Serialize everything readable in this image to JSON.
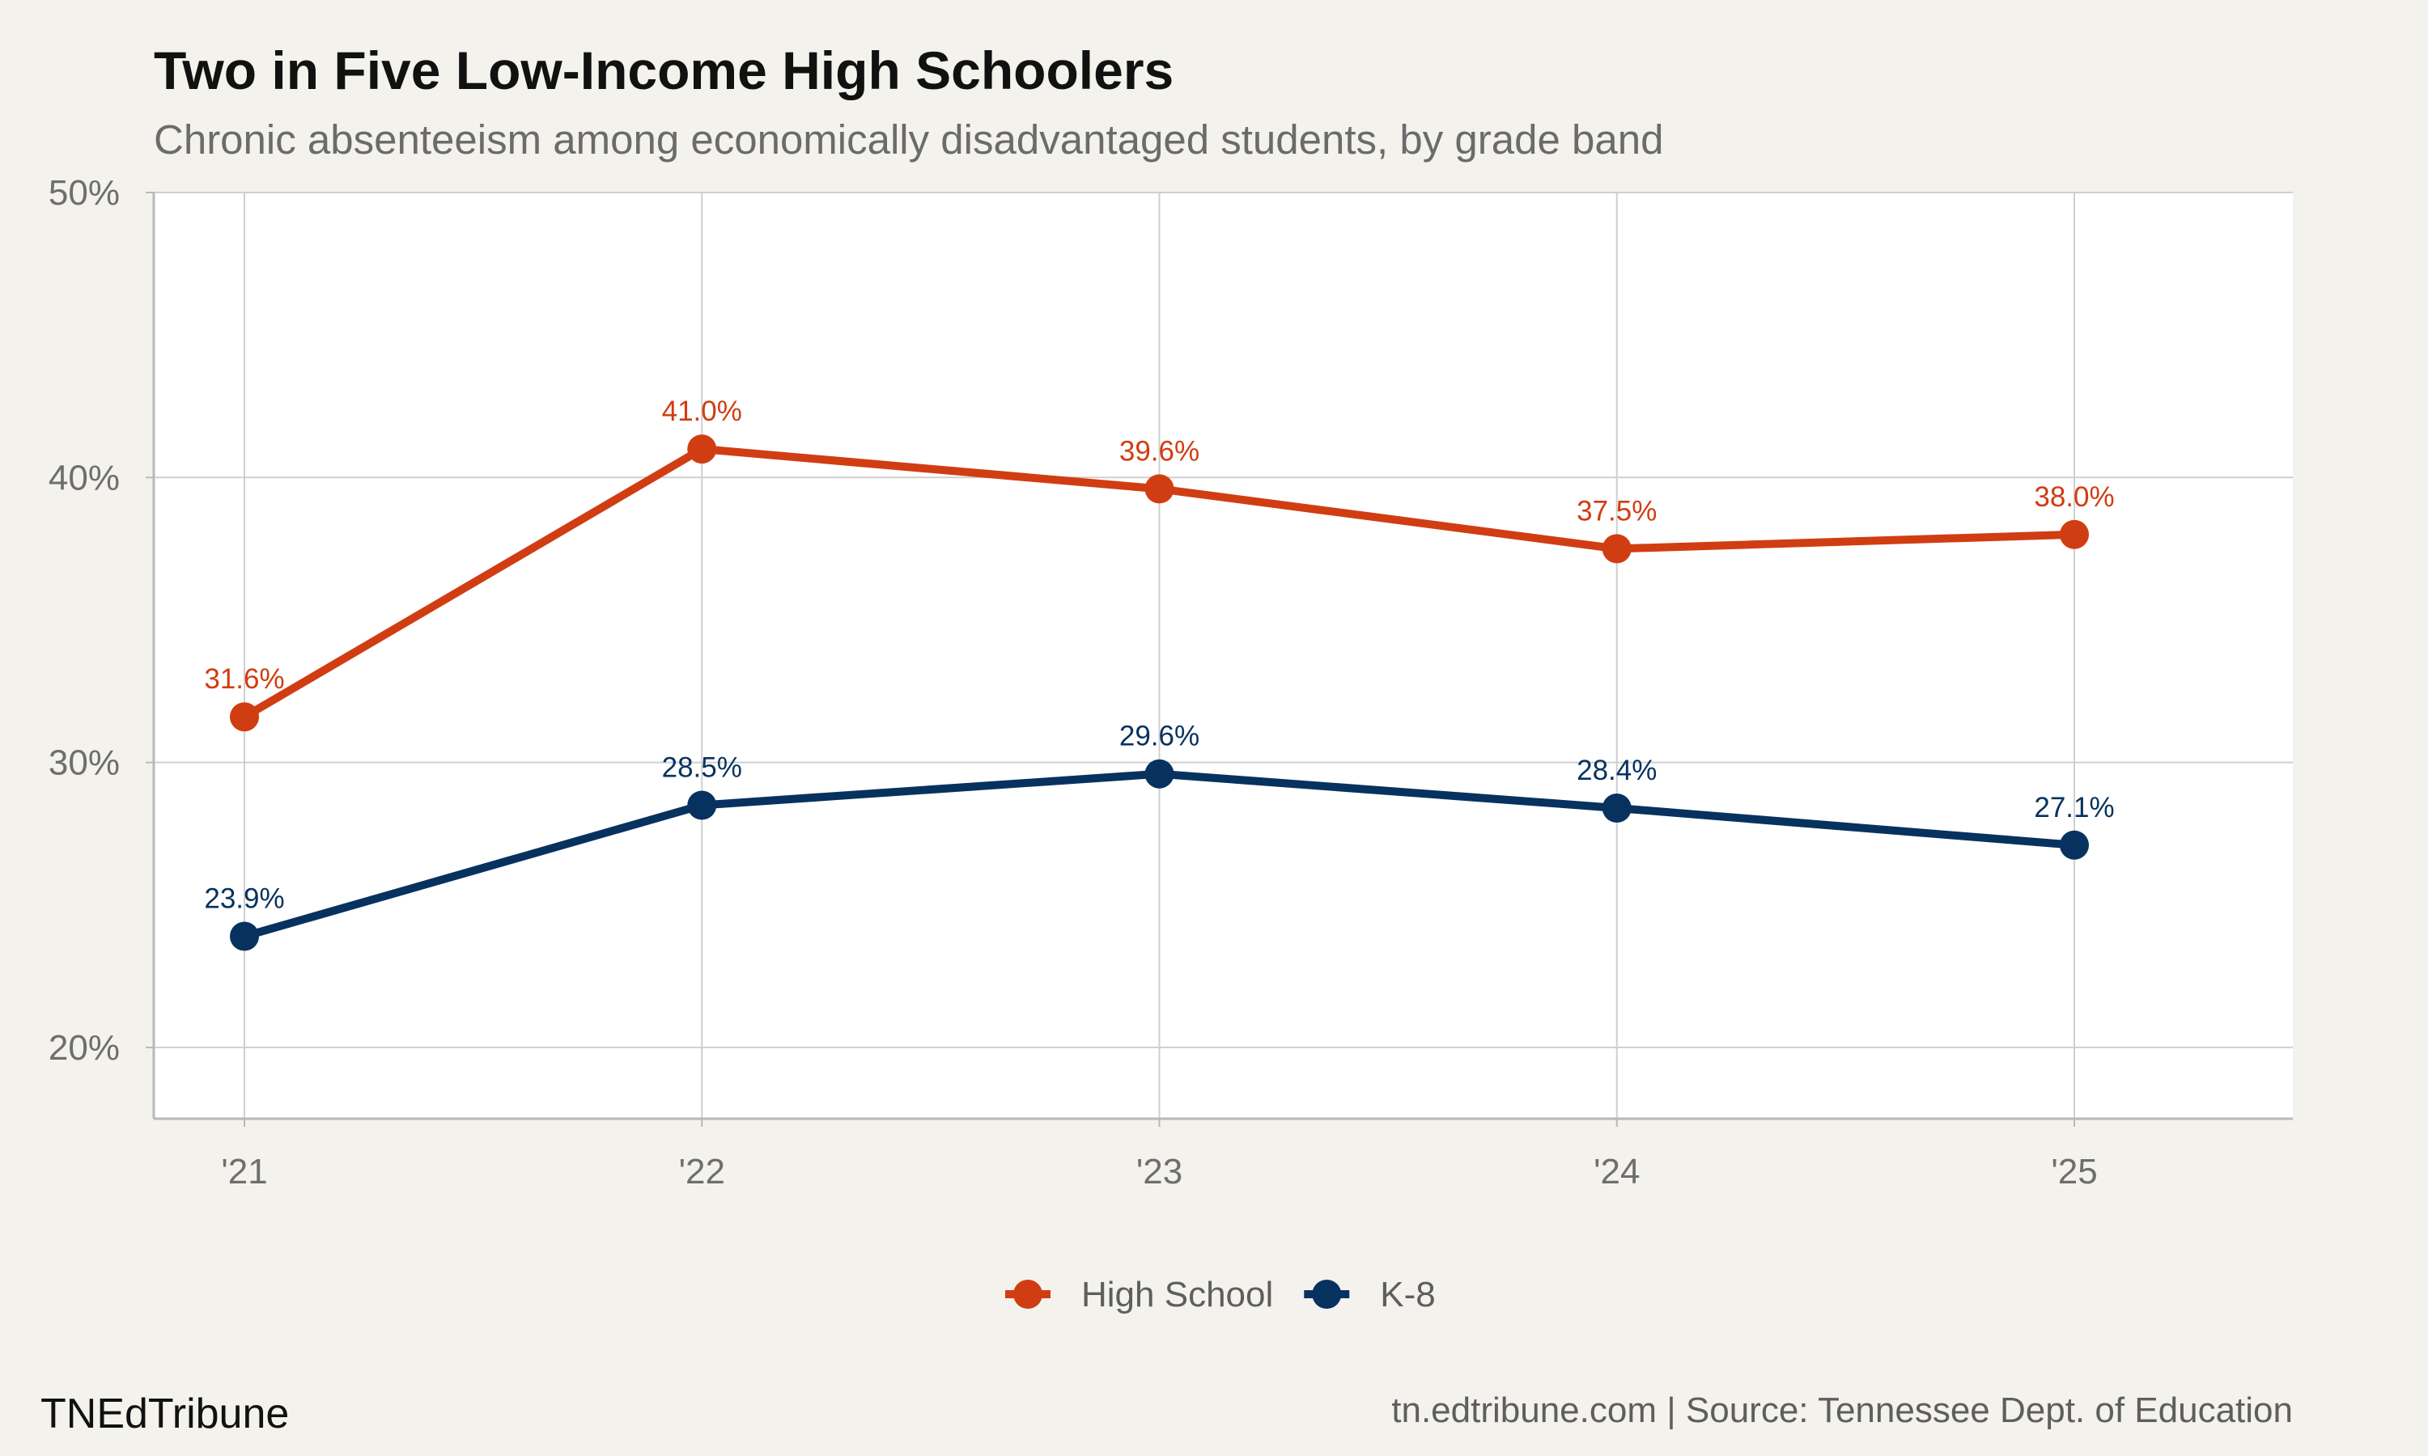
{
  "chart_data": {
    "type": "line",
    "title": "Two in Five Low-Income High Schoolers",
    "subtitle": "Chronic absenteeism among economically disadvantaged students, by grade band",
    "categories": [
      "'21",
      "'22",
      "'23",
      "'24",
      "'25"
    ],
    "series": [
      {
        "name": "High School",
        "color": "#d13d12",
        "values": [
          31.6,
          41.0,
          39.6,
          37.5,
          38.0
        ],
        "labels": [
          "31.6%",
          "41.0%",
          "39.6%",
          "37.5%",
          "38.0%"
        ]
      },
      {
        "name": "K-8",
        "color": "#07325f",
        "values": [
          23.9,
          28.5,
          29.6,
          28.4,
          27.1
        ],
        "labels": [
          "23.9%",
          "28.5%",
          "29.6%",
          "28.4%",
          "27.1%"
        ]
      }
    ],
    "ylim": [
      17.5,
      50
    ],
    "yticks": [
      20,
      30,
      40,
      50
    ],
    "ytick_labels": [
      "20%",
      "30%",
      "40%",
      "50%"
    ],
    "grid": true,
    "legend_position": "bottom",
    "xlabel": "",
    "ylabel": ""
  },
  "footer": {
    "brand": "TNEdTribune",
    "caption": "tn.edtribune.com | Source: Tennessee Dept. of Education"
  },
  "colors": {
    "background": "#f4f2ed",
    "panel": "#ffffff",
    "grid": "#cfcfcf"
  }
}
